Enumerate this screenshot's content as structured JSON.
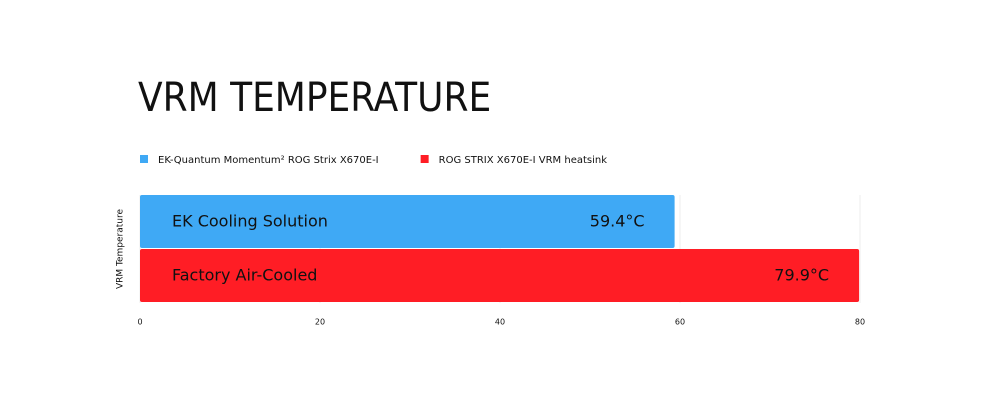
{
  "chart_data": {
    "type": "bar",
    "orientation": "horizontal",
    "title": "VRM TEMPERATURE",
    "categories": [
      "VRM Temperature"
    ],
    "series": [
      {
        "name": "EK-Quantum Momentum² ROG Strix X670E-I",
        "label": "EK Cooling Solution",
        "color": "#3fa9f5",
        "values": [
          59.4
        ],
        "value_labels": [
          "59.4°C"
        ]
      },
      {
        "name": "ROG STRIX X670E-I VRM heatsink",
        "label": "Factory Air-Cooled",
        "color": "#ff1d25",
        "values": [
          79.9
        ],
        "value_labels": [
          "79.9°C"
        ]
      }
    ],
    "xlim": [
      0,
      80
    ],
    "xticks": [
      0,
      20,
      40,
      60,
      80
    ],
    "grid": true,
    "legend": "top-left"
  }
}
